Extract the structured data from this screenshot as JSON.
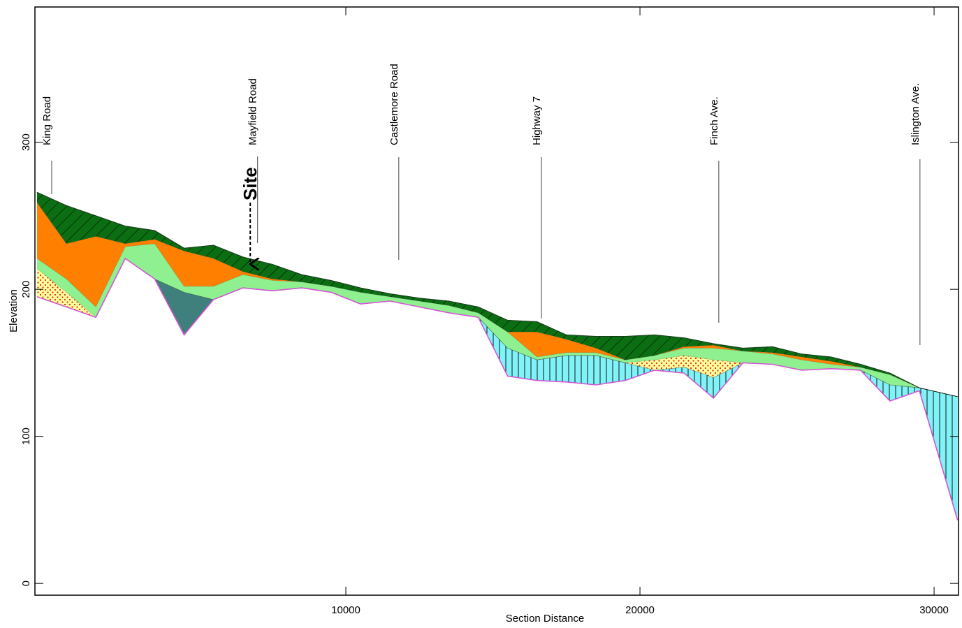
{
  "chart_data": {
    "type": "cross-section",
    "x_label": "Section Distance",
    "y_label": "Elevation",
    "xlim": [
      -570,
      30830
    ],
    "ylim": [
      -8,
      392
    ],
    "xticks": [
      10000,
      20000,
      30000
    ],
    "yticks": [
      0,
      100,
      200,
      300
    ],
    "x": [
      -500,
      500,
      1500,
      2500,
      3500,
      4500,
      5500,
      6500,
      7500,
      8500,
      9500,
      10500,
      11500,
      12500,
      13500,
      14500,
      15500,
      16500,
      17500,
      18500,
      19500,
      20500,
      21500,
      22500,
      23500,
      24500,
      25500,
      26500,
      27500,
      28500,
      29500,
      30800
    ],
    "surfaces": [
      {
        "values": [
          266,
          257,
          250,
          243,
          240,
          228,
          230,
          222,
          217,
          210,
          206,
          201,
          197,
          194,
          192,
          188,
          179,
          178,
          169,
          168,
          168,
          169,
          167,
          163,
          160,
          161,
          156,
          154,
          149,
          143,
          133,
          127
        ]
      },
      {
        "values": [
          259,
          231,
          236,
          231,
          234,
          226,
          221,
          212,
          207,
          205,
          202,
          198,
          195,
          192,
          189,
          184,
          171,
          171,
          166,
          160,
          152,
          155,
          161,
          162,
          158,
          157,
          154,
          151,
          147,
          142,
          133,
          127
        ]
      },
      {
        "values": [
          221,
          207,
          188,
          229,
          231,
          202,
          202,
          210,
          206,
          205,
          202,
          198,
          195,
          192,
          189,
          184,
          171,
          154,
          157,
          157,
          152,
          155,
          160,
          160,
          158,
          156,
          152,
          149,
          147,
          142,
          133,
          127
        ]
      },
      {
        "values": [
          214,
          198,
          181,
          221,
          207,
          198,
          193,
          201,
          199,
          201,
          198,
          190,
          192,
          188,
          184,
          181,
          160,
          152,
          155,
          155,
          150,
          152,
          155,
          152,
          150,
          149,
          145,
          146,
          145,
          135,
          133,
          127
        ]
      },
      {
        "values": [
          195,
          188,
          181,
          221,
          207,
          198,
          193,
          201,
          199,
          201,
          198,
          190,
          192,
          188,
          184,
          181,
          160,
          152,
          155,
          155,
          150,
          145,
          147,
          140,
          150,
          149,
          145,
          146,
          145,
          135,
          133,
          127
        ]
      },
      {
        "values": [
          195,
          188,
          181,
          221,
          207,
          169,
          193,
          201,
          199,
          201,
          198,
          190,
          192,
          188,
          184,
          181,
          160,
          152,
          155,
          155,
          150,
          145,
          147,
          140,
          150,
          149,
          145,
          146,
          145,
          135,
          133,
          127
        ]
      },
      {
        "values": [
          195,
          188,
          181,
          221,
          207,
          169,
          193,
          201,
          199,
          201,
          198,
          190,
          192,
          188,
          184,
          181,
          141,
          138,
          137,
          135,
          138,
          145,
          143,
          126,
          150,
          149,
          145,
          146,
          145,
          124,
          131,
          43
        ]
      }
    ],
    "fills": [
      {
        "color": "#0b6e12",
        "hatch": "diagonal"
      },
      {
        "color": "#ff7f00"
      },
      {
        "color": "#8ef08e"
      },
      {
        "color": "#ffff9a",
        "hatch": "dots"
      },
      {
        "color": "#3f7f7c"
      },
      {
        "color": "#80f2f8",
        "hatch": "vertical"
      }
    ],
    "roads": [
      {
        "label": "King Road",
        "x": 0
      },
      {
        "label": "Mayfield Road",
        "x": 7000
      },
      {
        "label": "Castlemore Road",
        "x": 11800
      },
      {
        "label": "Highway 7",
        "x": 16650
      },
      {
        "label": "Finch Ave.",
        "x": 22680
      },
      {
        "label": "Islington Ave.",
        "x": 29520
      }
    ],
    "site": {
      "label": "Site",
      "x": 6750
    }
  }
}
